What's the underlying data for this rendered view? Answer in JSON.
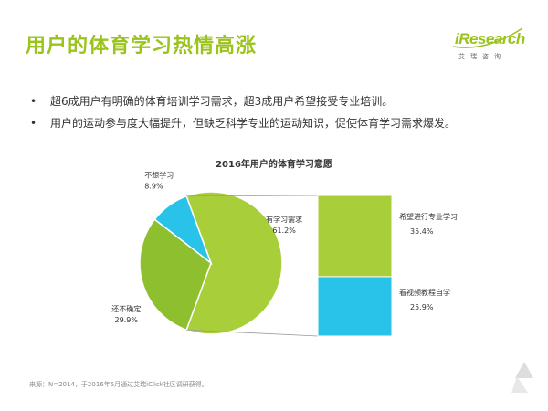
{
  "header": {
    "title": "用户的体育学习热情高涨",
    "logo_text": "iResearch",
    "logo_sub": "艾瑞咨询"
  },
  "bullets": [
    "超6成用户有明确的体育培训学习需求，超3成用户希望接受专业培训。",
    "用户的运动参与度大幅提升，但缺乏科学专业的运动知识，促使体育学习需求爆发。"
  ],
  "bullet_marker": "•",
  "source": "来源：N=2014，于2016年5月通过艾瑞iClick社区调研获得。",
  "colors": {
    "accent": "#9ac31c",
    "slice_want": "#a8cf3a",
    "slice_unsure": "#8ebf2e",
    "slice_no": "#29c3ea",
    "bar_pro": "#a8cf3a",
    "bar_video": "#29c3ea"
  },
  "chart_data": {
    "type": "pie",
    "title": "2016年用户的体育学习意愿",
    "slices": [
      {
        "label": "有学习需求",
        "value": 61.2,
        "value_label": "61.2%"
      },
      {
        "label": "还不确定",
        "value": 29.9,
        "value_label": "29.9%"
      },
      {
        "label": "不想学习",
        "value": 8.9,
        "value_label": "8.9%"
      }
    ],
    "breakdown": {
      "of": "有学习需求",
      "type": "stacked-bar",
      "segments": [
        {
          "label": "希望进行专业学习",
          "value": 35.4,
          "value_label": "35.4%"
        },
        {
          "label": "看视频教程自学",
          "value": 25.9,
          "value_label": "25.9%"
        }
      ]
    }
  }
}
